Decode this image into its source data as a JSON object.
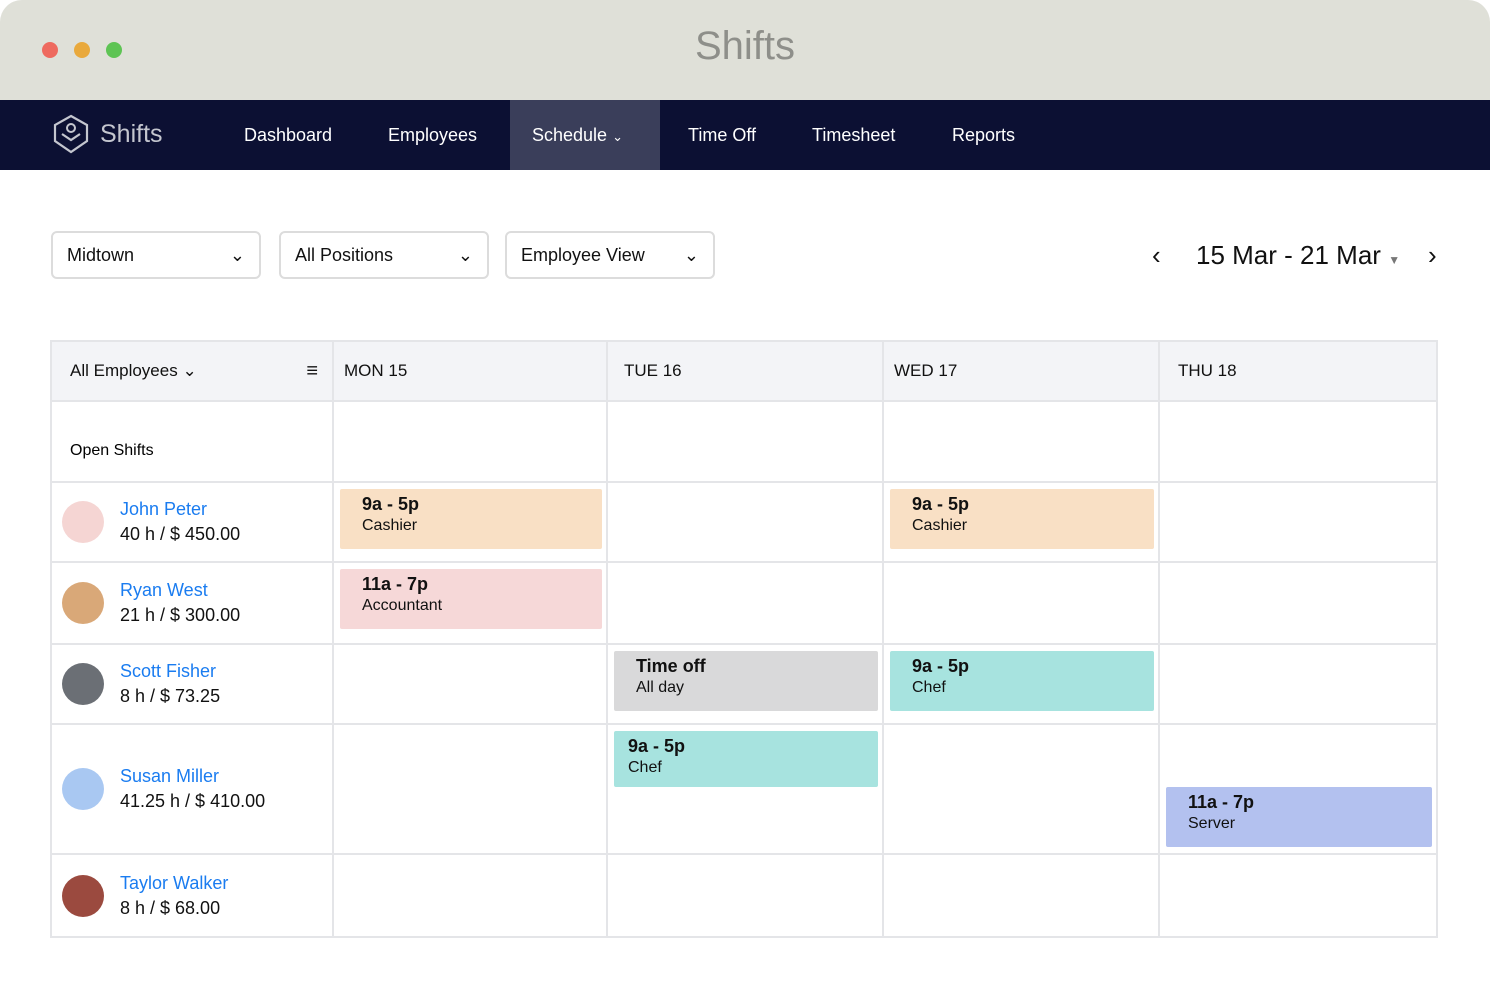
{
  "window": {
    "title": "Shifts",
    "controls": [
      "#ee6a5f",
      "#e9a93c",
      "#5ec454"
    ]
  },
  "nav": {
    "brand": "Shifts",
    "items": [
      {
        "label": "Dashboard"
      },
      {
        "label": "Employees"
      },
      {
        "label": "Schedule",
        "active": true
      },
      {
        "label": "Time Off"
      },
      {
        "label": "Timesheet"
      },
      {
        "label": "Reports"
      }
    ]
  },
  "filters": {
    "location": "Midtown",
    "positions": "All Positions",
    "view": "Employee View"
  },
  "date_range": "15 Mar - 21 Mar",
  "grid": {
    "employee_filter": "All Employees",
    "days": [
      "MON 15",
      "TUE 16",
      "WED 17",
      "THU 18"
    ],
    "open_shifts_label": "Open Shifts",
    "employees": [
      {
        "name": "John Peter",
        "summary": "40 h / $ 450.00",
        "avatar_color": "#f5d5d3",
        "shifts": [
          {
            "day": 0,
            "time": "9a - 5p",
            "role": "Cashier",
            "color": "#f9e0c5"
          },
          {
            "day": 2,
            "time": "9a - 5p",
            "role": "Cashier",
            "color": "#f9e0c5"
          }
        ]
      },
      {
        "name": "Ryan West",
        "summary": "21 h / $ 300.00",
        "avatar_color": "#d9a878",
        "shifts": [
          {
            "day": 0,
            "time": "11a - 7p",
            "role": "Accountant",
            "color": "#f6d8d8"
          }
        ]
      },
      {
        "name": "Scott Fisher",
        "summary": "8 h / $ 73.25",
        "avatar_color": "#6b6f75",
        "shifts": [
          {
            "day": 1,
            "time": "Time off",
            "role": "All day",
            "color": "#d9d9da"
          },
          {
            "day": 2,
            "time": "9a - 5p",
            "role": "Chef",
            "color": "#a7e3df"
          }
        ]
      },
      {
        "name": "Susan Miller",
        "summary": "41.25 h / $ 410.00",
        "avatar_color": "#a9c8f2",
        "shifts": [
          {
            "day": 1,
            "time": "9a - 5p",
            "role": "Chef",
            "color": "#a7e3df"
          },
          {
            "day": 3,
            "time": "11a - 7p",
            "role": "Server",
            "color": "#b3c1ef"
          }
        ]
      },
      {
        "name": "Taylor Walker",
        "summary": "8 h / $ 68.00",
        "avatar_color": "#9b4a3f",
        "shifts": []
      }
    ]
  }
}
